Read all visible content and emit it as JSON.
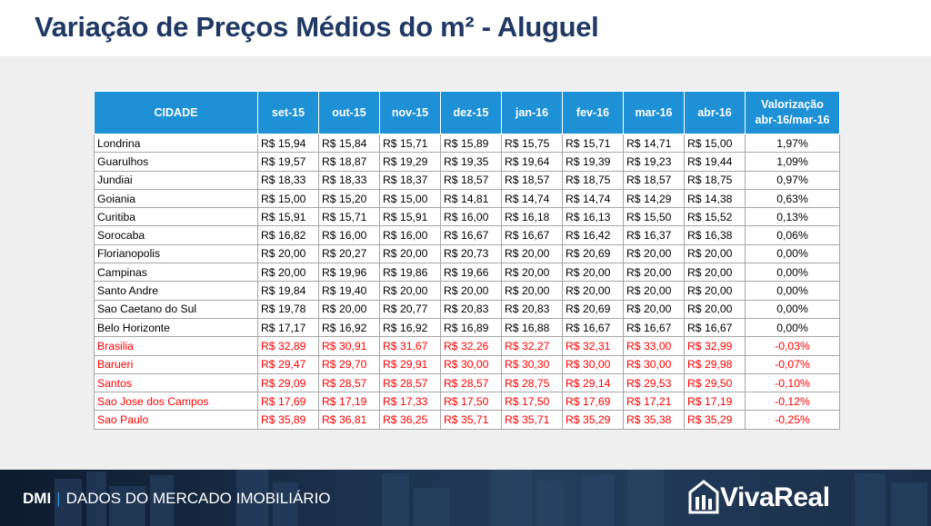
{
  "title": "Variação de Preços Médios do m² - Aluguel",
  "table": {
    "headers": [
      "CIDADE",
      "set-15",
      "out-15",
      "nov-15",
      "dez-15",
      "jan-16",
      "fev-16",
      "mar-16",
      "abr-16",
      "Valorização",
      "abr-16/mar-16"
    ],
    "rows": [
      {
        "city": "Londrina",
        "v": [
          "R$ 15,94",
          "R$ 15,84",
          "R$ 15,71",
          "R$ 15,89",
          "R$ 15,75",
          "R$ 15,71",
          "R$ 14,71",
          "R$ 15,00"
        ],
        "val": "1,97%",
        "neg": false
      },
      {
        "city": "Guarulhos",
        "v": [
          "R$ 19,57",
          "R$ 18,87",
          "R$ 19,29",
          "R$ 19,35",
          "R$ 19,64",
          "R$ 19,39",
          "R$ 19,23",
          "R$ 19,44"
        ],
        "val": "1,09%",
        "neg": false
      },
      {
        "city": "Jundiai",
        "v": [
          "R$ 18,33",
          "R$ 18,33",
          "R$ 18,37",
          "R$ 18,57",
          "R$ 18,57",
          "R$ 18,75",
          "R$ 18,57",
          "R$ 18,75"
        ],
        "val": "0,97%",
        "neg": false
      },
      {
        "city": "Goiania",
        "v": [
          "R$ 15,00",
          "R$ 15,20",
          "R$ 15,00",
          "R$ 14,81",
          "R$ 14,74",
          "R$ 14,74",
          "R$ 14,29",
          "R$ 14,38"
        ],
        "val": "0,63%",
        "neg": false
      },
      {
        "city": "Curitiba",
        "v": [
          "R$ 15,91",
          "R$ 15,71",
          "R$ 15,91",
          "R$ 16,00",
          "R$ 16,18",
          "R$ 16,13",
          "R$ 15,50",
          "R$ 15,52"
        ],
        "val": "0,13%",
        "neg": false
      },
      {
        "city": "Sorocaba",
        "v": [
          "R$ 16,82",
          "R$ 16,00",
          "R$ 16,00",
          "R$ 16,67",
          "R$ 16,67",
          "R$ 16,42",
          "R$ 16,37",
          "R$ 16,38"
        ],
        "val": "0,06%",
        "neg": false
      },
      {
        "city": "Florianopolis",
        "v": [
          "R$ 20,00",
          "R$ 20,27",
          "R$ 20,00",
          "R$ 20,73",
          "R$ 20,00",
          "R$ 20,69",
          "R$ 20,00",
          "R$ 20,00"
        ],
        "val": "0,00%",
        "neg": false
      },
      {
        "city": "Campinas",
        "v": [
          "R$ 20,00",
          "R$ 19,96",
          "R$ 19,86",
          "R$ 19,66",
          "R$ 20,00",
          "R$ 20,00",
          "R$ 20,00",
          "R$ 20,00"
        ],
        "val": "0,00%",
        "neg": false
      },
      {
        "city": "Santo Andre",
        "v": [
          "R$ 19,84",
          "R$ 19,40",
          "R$ 20,00",
          "R$ 20,00",
          "R$ 20,00",
          "R$ 20,00",
          "R$ 20,00",
          "R$ 20,00"
        ],
        "val": "0,00%",
        "neg": false
      },
      {
        "city": "Sao Caetano do Sul",
        "v": [
          "R$ 19,78",
          "R$ 20,00",
          "R$ 20,77",
          "R$ 20,83",
          "R$ 20,83",
          "R$ 20,69",
          "R$ 20,00",
          "R$ 20,00"
        ],
        "val": "0,00%",
        "neg": false
      },
      {
        "city": "Belo Horizonte",
        "v": [
          "R$ 17,17",
          "R$ 16,92",
          "R$ 16,92",
          "R$ 16,89",
          "R$ 16,88",
          "R$ 16,67",
          "R$ 16,67",
          "R$ 16,67"
        ],
        "val": "0,00%",
        "neg": false
      },
      {
        "city": "Brasilia",
        "v": [
          "R$ 32,89",
          "R$ 30,91",
          "R$ 31,67",
          "R$ 32,26",
          "R$ 32,27",
          "R$ 32,31",
          "R$ 33,00",
          "R$ 32,99"
        ],
        "val": "-0,03%",
        "neg": true
      },
      {
        "city": "Barueri",
        "v": [
          "R$ 29,47",
          "R$ 29,70",
          "R$ 29,91",
          "R$ 30,00",
          "R$ 30,30",
          "R$ 30,00",
          "R$ 30,00",
          "R$ 29,98"
        ],
        "val": "-0,07%",
        "neg": true
      },
      {
        "city": "Santos",
        "v": [
          "R$ 29,09",
          "R$ 28,57",
          "R$ 28,57",
          "R$ 28,57",
          "R$ 28,75",
          "R$ 29,14",
          "R$ 29,53",
          "R$ 29,50"
        ],
        "val": "-0,10%",
        "neg": true
      },
      {
        "city": "Sao Jose dos Campos",
        "v": [
          "R$ 17,69",
          "R$ 17,19",
          "R$ 17,33",
          "R$ 17,50",
          "R$ 17,50",
          "R$ 17,69",
          "R$ 17,21",
          "R$ 17,19"
        ],
        "val": "-0,12%",
        "neg": true
      },
      {
        "city": "Sao Paulo",
        "v": [
          "R$ 35,89",
          "R$ 36,81",
          "R$ 36,25",
          "R$ 35,71",
          "R$ 35,71",
          "R$ 35,29",
          "R$ 35,38",
          "R$ 35,29"
        ],
        "val": "-0,25%",
        "neg": true
      }
    ]
  },
  "footer": {
    "brand": "DMI",
    "separator": "|",
    "subtitle": "DADOS DO MERCADO IMOBILIÁRIO",
    "logo_text": "VivaReal",
    "logo_icon": "house-icon"
  },
  "colors": {
    "title": "#1f3864",
    "header_bg": "#1e90d5",
    "negative": "#ff0000",
    "accent": "#2e8fd6"
  }
}
